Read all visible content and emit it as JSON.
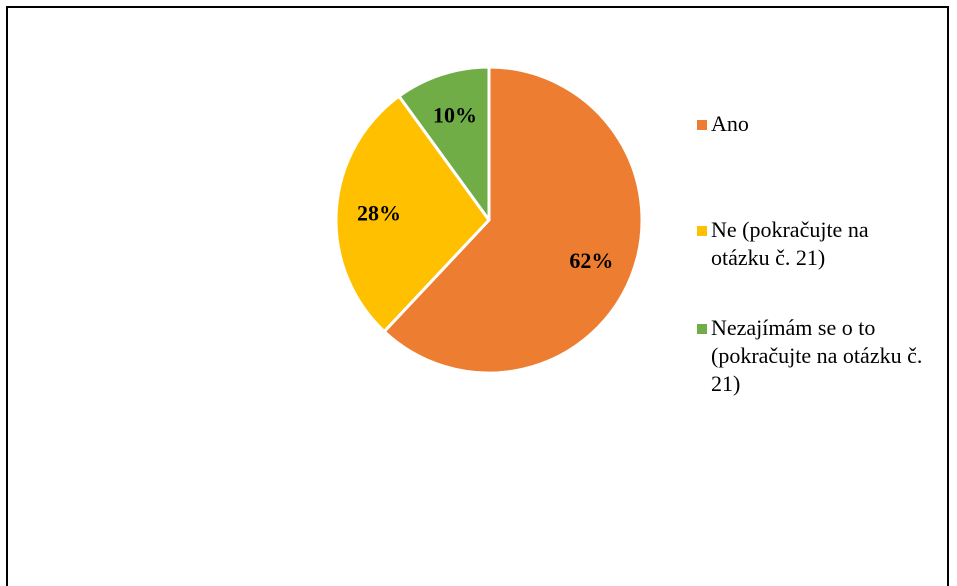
{
  "chart_data": {
    "type": "pie",
    "title": "",
    "start_angle_deg": 0,
    "direction": "clockwise",
    "legend_position": "right",
    "series": [
      {
        "name": "Ano",
        "value": 62,
        "label": "62%",
        "color": "#ED7D31"
      },
      {
        "name": "Ne (pokračujte na otázku č. 21)",
        "value": 28,
        "label": "28%",
        "color": "#FFC000"
      },
      {
        "name": "Nezajímám se o to (pokračujte na otázku č. 21)",
        "value": 10,
        "label": "10%",
        "color": "#70AD47"
      }
    ]
  }
}
